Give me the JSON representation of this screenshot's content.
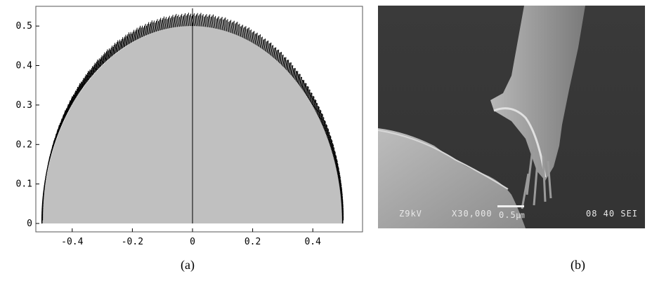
{
  "chart_data": {
    "type": "area",
    "title": "",
    "xlabel": "",
    "ylabel": "",
    "xlim": [
      -0.5,
      0.5
    ],
    "ylim": [
      0,
      0.55
    ],
    "x_ticks": [
      "-0.4",
      "-0.2",
      "0",
      "0.2",
      "0.4"
    ],
    "y_ticks": [
      "0",
      "0.1",
      "0.2",
      "0.3",
      "0.4",
      "0.5"
    ],
    "x_tick_values": [
      -0.4,
      -0.2,
      0,
      0.2,
      0.4
    ],
    "y_tick_values": [
      0,
      0.1,
      0.2,
      0.3,
      0.4,
      0.5
    ],
    "series": [
      {
        "x": [
          -0.5,
          -0.45,
          -0.4,
          -0.35,
          -0.3,
          -0.25,
          -0.2,
          -0.15,
          -0.1,
          -0.05,
          0,
          0.05,
          0.1,
          0.15,
          0.2,
          0.25,
          0.3,
          0.35,
          0.4,
          0.45,
          0.5
        ],
        "y": [
          0.0,
          0.218,
          0.3,
          0.357,
          0.4,
          0.433,
          0.458,
          0.477,
          0.49,
          0.497,
          0.5,
          0.497,
          0.49,
          0.477,
          0.458,
          0.433,
          0.4,
          0.357,
          0.3,
          0.218,
          0.0
        ]
      }
    ],
    "grid": false,
    "fill_color": "#c0c0c0",
    "band_color": "#000000"
  },
  "sem_image": {
    "voltage": "Z9kV",
    "magnification": "X30,000",
    "scale": "0.5㎛",
    "code": "08 40 SEI"
  },
  "captions": {
    "a": "(a)",
    "b": "(b)"
  }
}
